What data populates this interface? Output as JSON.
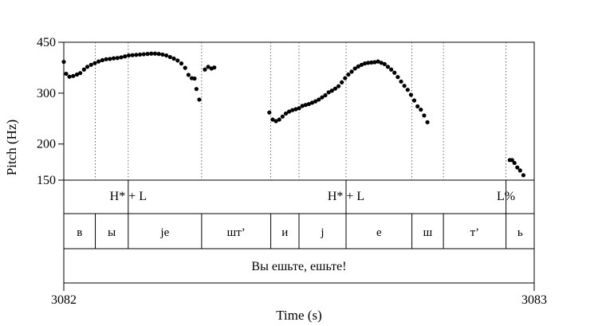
{
  "chart_data": {
    "type": "scatter",
    "title": "",
    "xlabel": "Time (s)",
    "ylabel": "Pitch (Hz)",
    "y_scale": "log",
    "ylim": [
      150,
      450
    ],
    "y_ticks": [
      450,
      300,
      200,
      150
    ],
    "x_start_label": "3082",
    "x_end_label": "3083",
    "xlim": [
      0,
      1
    ],
    "boundary_times": [
      0.067,
      0.137,
      0.293,
      0.44,
      0.5,
      0.6,
      0.74,
      0.807,
      0.94
    ],
    "tones": [
      {
        "label": "H* + L",
        "t": 0.137
      },
      {
        "label": "H* + L",
        "t": 0.6
      },
      {
        "label": "L%",
        "t": 0.94
      }
    ],
    "segments": [
      {
        "label": "в",
        "t0": 0.0,
        "t1": 0.067
      },
      {
        "label": "ы",
        "t0": 0.067,
        "t1": 0.137
      },
      {
        "label": "je",
        "t0": 0.137,
        "t1": 0.293
      },
      {
        "label": "шт’",
        "t0": 0.293,
        "t1": 0.44
      },
      {
        "label": "и",
        "t0": 0.44,
        "t1": 0.5
      },
      {
        "label": "j",
        "t0": 0.5,
        "t1": 0.6
      },
      {
        "label": "е",
        "t0": 0.6,
        "t1": 0.74
      },
      {
        "label": "ш",
        "t0": 0.74,
        "t1": 0.807
      },
      {
        "label": "т’",
        "t0": 0.807,
        "t1": 0.94
      },
      {
        "label": "ь",
        "t0": 0.94,
        "t1": 1.0
      }
    ],
    "utterance": "Вы ешьте, ешьте!",
    "series": [
      {
        "points": [
          [
            0.0,
            385
          ],
          [
            0.005,
            350
          ],
          [
            0.012,
            342
          ],
          [
            0.02,
            344
          ],
          [
            0.028,
            348
          ],
          [
            0.035,
            352
          ],
          [
            0.043,
            362
          ],
          [
            0.05,
            370
          ],
          [
            0.058,
            376
          ],
          [
            0.066,
            381
          ],
          [
            0.074,
            386
          ],
          [
            0.082,
            390
          ],
          [
            0.09,
            393
          ],
          [
            0.098,
            394
          ],
          [
            0.106,
            396
          ],
          [
            0.114,
            397
          ],
          [
            0.122,
            399
          ],
          [
            0.13,
            402
          ],
          [
            0.138,
            405
          ],
          [
            0.146,
            406
          ],
          [
            0.154,
            407
          ],
          [
            0.162,
            408
          ],
          [
            0.17,
            409
          ],
          [
            0.178,
            410
          ],
          [
            0.186,
            411
          ],
          [
            0.194,
            411
          ],
          [
            0.202,
            410
          ],
          [
            0.21,
            408
          ],
          [
            0.218,
            405
          ],
          [
            0.226,
            400
          ],
          [
            0.234,
            395
          ],
          [
            0.242,
            389
          ],
          [
            0.25,
            380
          ],
          [
            0.258,
            367
          ],
          [
            0.265,
            347
          ],
          [
            0.272,
            338
          ],
          [
            0.278,
            337
          ],
          [
            0.282,
            310
          ],
          [
            0.288,
            285
          ],
          [
            0.3,
            362
          ],
          [
            0.307,
            370
          ],
          [
            0.314,
            365
          ],
          [
            0.32,
            368
          ],
          [
            0.437,
            257
          ],
          [
            0.444,
            243
          ],
          [
            0.451,
            240
          ],
          [
            0.458,
            243
          ],
          [
            0.465,
            249
          ],
          [
            0.472,
            255
          ],
          [
            0.479,
            259
          ],
          [
            0.486,
            262
          ],
          [
            0.493,
            264
          ],
          [
            0.5,
            266
          ],
          [
            0.507,
            271
          ],
          [
            0.514,
            273
          ],
          [
            0.521,
            275
          ],
          [
            0.528,
            278
          ],
          [
            0.535,
            281
          ],
          [
            0.542,
            285
          ],
          [
            0.549,
            290
          ],
          [
            0.556,
            295
          ],
          [
            0.563,
            302
          ],
          [
            0.57,
            306
          ],
          [
            0.577,
            311
          ],
          [
            0.584,
            317
          ],
          [
            0.591,
            327
          ],
          [
            0.598,
            338
          ],
          [
            0.605,
            348
          ],
          [
            0.612,
            356
          ],
          [
            0.619,
            365
          ],
          [
            0.626,
            371
          ],
          [
            0.633,
            376
          ],
          [
            0.64,
            380
          ],
          [
            0.647,
            382
          ],
          [
            0.654,
            383
          ],
          [
            0.661,
            384
          ],
          [
            0.668,
            386
          ],
          [
            0.675,
            382
          ],
          [
            0.682,
            378
          ],
          [
            0.689,
            370
          ],
          [
            0.696,
            362
          ],
          [
            0.703,
            353
          ],
          [
            0.71,
            341
          ],
          [
            0.717,
            329
          ],
          [
            0.724,
            318
          ],
          [
            0.731,
            308
          ],
          [
            0.738,
            296
          ],
          [
            0.745,
            283
          ],
          [
            0.752,
            270
          ],
          [
            0.759,
            263
          ],
          [
            0.766,
            251
          ],
          [
            0.773,
            238
          ],
          [
            0.948,
            176
          ],
          [
            0.953,
            176
          ],
          [
            0.958,
            172
          ],
          [
            0.964,
            166
          ],
          [
            0.97,
            162
          ],
          [
            0.977,
            156
          ]
        ]
      }
    ]
  }
}
